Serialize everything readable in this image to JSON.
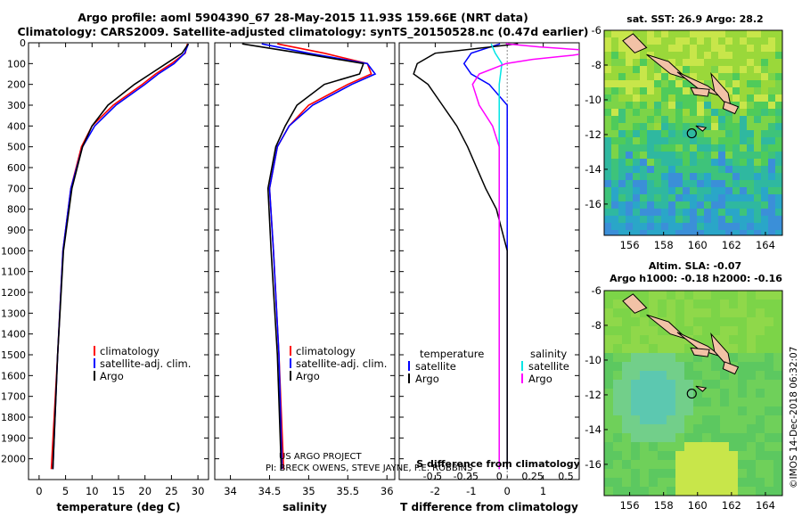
{
  "header": {
    "line1": "Argo profile: aoml 5904390_67 28-May-2015 11.93S 159.66E (NRT data)",
    "line2": "Climatology: CARS2009. Satellite-adjusted climatology: synTS_20150528.nc (0.47d earlier)"
  },
  "right_panels": {
    "sst_title": "sat. SST: 26.9 Argo: 28.2",
    "sla_title_1": "Altim. SLA: -0.07",
    "sla_title_2": "Argo h1000: -0.18 h2000: -0.16"
  },
  "credits": {
    "line1": "US ARGO PROJECT",
    "line2": "PI: BRECK OWENS, STEVE JAYNE, P.E. ROBBINS",
    "imos": "©IMOS 14-Dec-2018 06:32:07"
  },
  "colors": {
    "argo": "#000000",
    "climatology": "#ff0000",
    "satellite": "#0000ff",
    "sat_salinity": "#00e5e5",
    "argo_salinity": "#ff00ff"
  },
  "chart_data": [
    {
      "type": "line",
      "xlabel": "temperature (deg C)",
      "ylabel": "",
      "xlim": [
        -2,
        32
      ],
      "ylim": [
        2100,
        0
      ],
      "xticks": [
        0,
        5,
        10,
        15,
        20,
        25,
        30
      ],
      "yticks": [
        0,
        100,
        200,
        300,
        400,
        500,
        600,
        700,
        800,
        900,
        1000,
        1100,
        1200,
        1300,
        1400,
        1500,
        1600,
        1700,
        1800,
        1900,
        2000
      ],
      "legend": [
        "climatology",
        "satellite-adj. clim.",
        "Argo"
      ],
      "series": [
        {
          "name": "climatology",
          "depth": [
            5,
            50,
            100,
            150,
            200,
            300,
            400,
            500,
            700,
            1000,
            1500,
            2050
          ],
          "values": [
            28.0,
            27.6,
            25.0,
            22.0,
            19.5,
            14.0,
            10.0,
            8.0,
            6.0,
            4.5,
            3.5,
            2.3
          ]
        },
        {
          "name": "satellite-adj. clim.",
          "depth": [
            5,
            50,
            100,
            150,
            200,
            300,
            400,
            500,
            700,
            1000,
            1500,
            2050
          ],
          "values": [
            28.2,
            27.5,
            25.5,
            22.5,
            20.0,
            14.5,
            10.5,
            8.2,
            6.0,
            4.5,
            3.5,
            2.6
          ]
        },
        {
          "name": "Argo",
          "depth": [
            5,
            50,
            100,
            150,
            200,
            300,
            400,
            500,
            700,
            1000,
            1500,
            2050
          ],
          "values": [
            28.2,
            27.0,
            24.0,
            21.0,
            18.0,
            13.0,
            10.0,
            8.2,
            6.2,
            4.6,
            3.5,
            2.6
          ]
        }
      ]
    },
    {
      "type": "line",
      "xlabel": "salinity",
      "ylabel": "",
      "xlim": [
        33.8,
        36.1
      ],
      "ylim": [
        2100,
        0
      ],
      "xticks": [
        34,
        34.5,
        35,
        35.5,
        36
      ],
      "legend": [
        "climatology",
        "satellite-adj. clim.",
        "Argo"
      ],
      "series": [
        {
          "name": "climatology",
          "depth": [
            5,
            50,
            100,
            150,
            200,
            300,
            400,
            500,
            700,
            1000,
            1500,
            2050
          ],
          "values": [
            34.6,
            35.2,
            35.75,
            35.8,
            35.5,
            35.0,
            34.75,
            34.6,
            34.5,
            34.55,
            34.62,
            34.68
          ]
        },
        {
          "name": "satellite-adj. clim.",
          "depth": [
            5,
            50,
            100,
            150,
            200,
            300,
            400,
            500,
            700,
            1000,
            1500,
            2050
          ],
          "values": [
            34.4,
            35.0,
            35.75,
            35.85,
            35.55,
            35.05,
            34.75,
            34.6,
            34.5,
            34.55,
            34.62,
            34.66
          ]
        },
        {
          "name": "Argo",
          "depth": [
            5,
            50,
            100,
            150,
            200,
            300,
            400,
            500,
            700,
            1000,
            1500,
            2050
          ],
          "values": [
            34.15,
            34.9,
            35.7,
            35.65,
            35.2,
            34.85,
            34.7,
            34.58,
            34.48,
            34.52,
            34.6,
            34.65
          ]
        }
      ]
    },
    {
      "type": "line",
      "xlabel": "T difference from climatology",
      "ylabel": "",
      "xlabel_top": "S difference from climatology",
      "xlim": [
        -3,
        2
      ],
      "ylim": [
        2100,
        0
      ],
      "xticks": [
        -2,
        -1,
        0,
        1
      ],
      "xticks_top": [
        -0.5,
        -0.25,
        0,
        0.25,
        0.5
      ],
      "legend": [
        "temperature",
        "satellite",
        "Argo",
        "salinity",
        "satellite",
        "Argo"
      ],
      "series": [
        {
          "name": "temperature satellite",
          "depth": [
            5,
            50,
            100,
            150,
            200,
            300,
            400,
            500,
            700,
            1000,
            1500,
            2050
          ],
          "values": [
            -0.2,
            -1.0,
            -1.2,
            -1.0,
            -0.5,
            0.0,
            0.0,
            0.0,
            0.0,
            0.0,
            0.0,
            0.0
          ]
        },
        {
          "name": "temperature Argo",
          "depth": [
            5,
            50,
            100,
            150,
            200,
            300,
            400,
            500,
            700,
            800,
            1000,
            1500,
            2050
          ],
          "values": [
            0.3,
            -2.0,
            -2.5,
            -2.6,
            -2.2,
            -1.8,
            -1.4,
            -1.1,
            -0.6,
            -0.3,
            0.0,
            0.0,
            0.0
          ]
        },
        {
          "name": "salinity satellite",
          "depth": [
            5,
            50,
            100,
            150,
            200,
            300,
            400,
            500,
            700,
            1000,
            1500,
            2050
          ],
          "values": [
            -0.06,
            -0.03,
            0.02,
            0.01,
            0.0,
            0.0,
            0.0,
            0.0,
            0.0,
            0.0,
            0.0,
            0.0
          ]
        },
        {
          "name": "salinity Argo",
          "depth": [
            5,
            20,
            40,
            60,
            80,
            100,
            150,
            200,
            300,
            400,
            500,
            700,
            1000,
            1500,
            2050
          ],
          "values": [
            0.05,
            0.3,
            0.75,
            0.55,
            0.25,
            0.05,
            -0.15,
            -0.2,
            -0.15,
            -0.05,
            0.0,
            0.0,
            0.0,
            0.0,
            0.0
          ]
        }
      ]
    },
    {
      "type": "heatmap",
      "title": "sat. SST: 26.9 Argo: 28.2",
      "xlim": [
        154.5,
        165
      ],
      "ylim": [
        -17.8,
        -6
      ],
      "xticks": [
        156,
        158,
        160,
        162,
        164
      ],
      "yticks": [
        -6,
        -8,
        -10,
        -12,
        -14,
        -16
      ],
      "argo_position": [
        159.66,
        -11.93
      ]
    },
    {
      "type": "heatmap",
      "title": "Altim. SLA: -0.07",
      "xlim": [
        154.5,
        165
      ],
      "ylim": [
        -17.8,
        -6
      ],
      "xticks": [
        156,
        158,
        160,
        162,
        164
      ],
      "yticks": [
        -6,
        -8,
        -10,
        -12,
        -14,
        -16
      ],
      "argo_position": [
        159.66,
        -11.93
      ]
    }
  ]
}
